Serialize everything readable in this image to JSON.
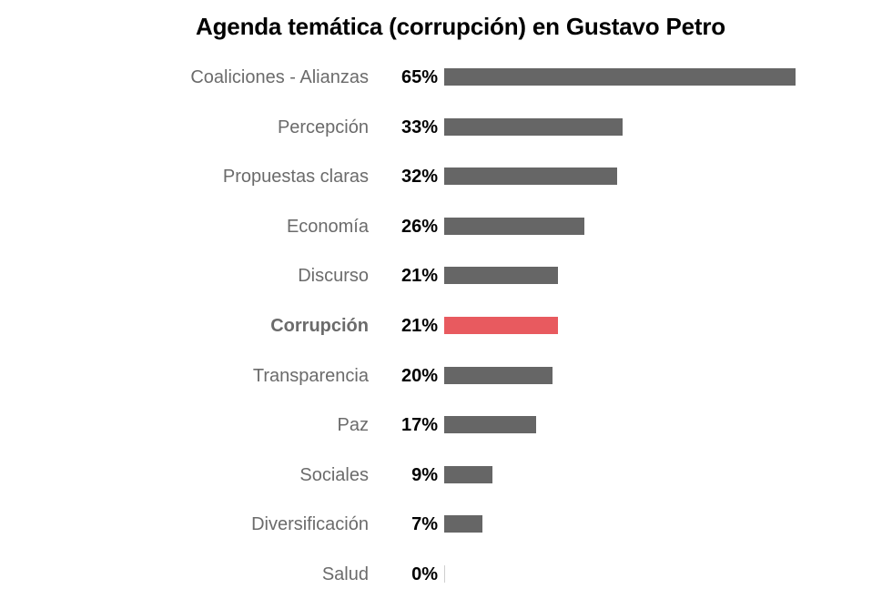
{
  "chart_data": {
    "type": "bar",
    "orientation": "horizontal",
    "title": "Agenda temática (corrupción) en Gustavo Petro",
    "categories": [
      "Coaliciones - Alianzas",
      "Percepción",
      "Propuestas claras",
      "Economía",
      "Discurso",
      "Corrupción",
      "Transparencia",
      "Paz",
      "Sociales",
      "Diversificación",
      "Salud"
    ],
    "values": [
      65,
      33,
      32,
      26,
      21,
      21,
      20,
      17,
      9,
      7,
      0
    ],
    "value_labels": [
      "65%",
      "33%",
      "32%",
      "26%",
      "21%",
      "21%",
      "20%",
      "17%",
      "9%",
      "7%",
      "0%"
    ],
    "highlight_category": "Corrupción",
    "xlim": [
      0,
      65
    ],
    "grid": false,
    "legend": "none",
    "colors": {
      "bar": "#666666",
      "highlight": "#e85a5f",
      "label": "#6b6b6b",
      "value": "#000000"
    }
  }
}
